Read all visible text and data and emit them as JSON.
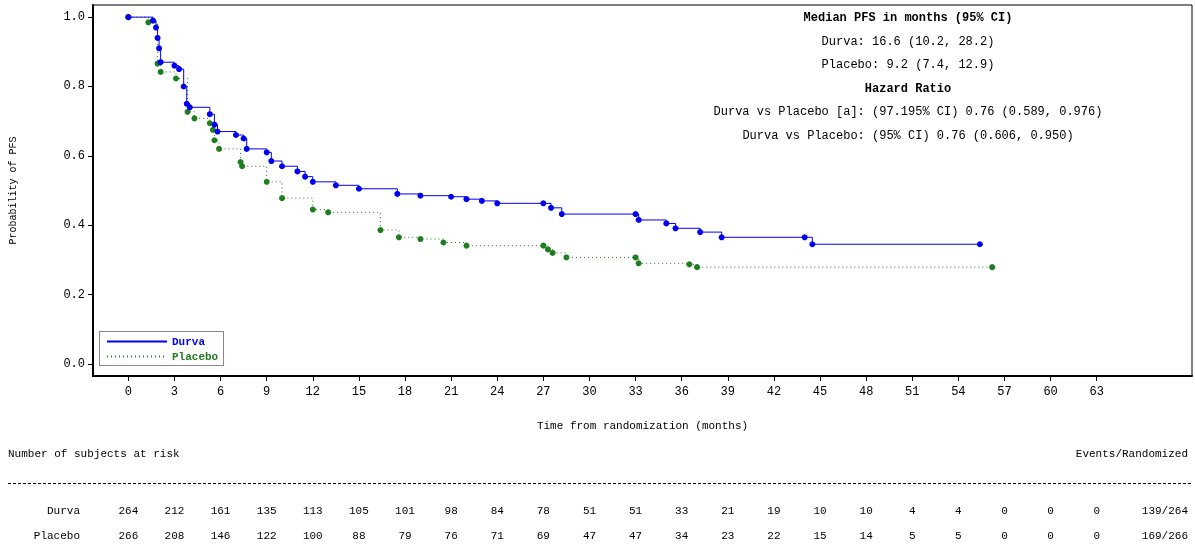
{
  "chart_data": {
    "type": "step",
    "xlabel": "Time from randomization (months)",
    "ylabel": "Probability of PFS",
    "xlim": [
      -2.3,
      69.2
    ],
    "xticks": [
      0,
      3,
      6,
      9,
      12,
      15,
      18,
      21,
      24,
      27,
      30,
      33,
      36,
      39,
      42,
      45,
      48,
      51,
      54,
      57,
      60,
      63
    ],
    "ylim": [
      -0.035,
      1.035
    ],
    "yticks": [
      {
        "value": 0,
        "label": "0.0"
      },
      0.2,
      0.4,
      0.6,
      0.8,
      {
        "value": 1,
        "label": "1.0"
      }
    ],
    "grid": false,
    "legend": "bottom left",
    "marker": "circle",
    "series": [
      {
        "name": "Durva",
        "color": "#0000ee",
        "line_style": "solid",
        "x": [
          0,
          1.6,
          1.8,
          1.9,
          2.0,
          2.1,
          3.0,
          3.3,
          3.6,
          3.8,
          4.0,
          5.3,
          5.6,
          5.8,
          7.0,
          7.5,
          7.7,
          9.0,
          9.3,
          10.0,
          11.0,
          11.5,
          12.0,
          13.5,
          15.0,
          17.5,
          19.0,
          21.0,
          22.0,
          23.0,
          24.0,
          27.0,
          27.5,
          28.2,
          33.0,
          33.2,
          35.0,
          35.6,
          37.2,
          38.6,
          44.0,
          44.5,
          55.4
        ],
        "values": [
          1.0,
          0.99,
          0.97,
          0.94,
          0.91,
          0.87,
          0.86,
          0.85,
          0.8,
          0.75,
          0.74,
          0.72,
          0.69,
          0.67,
          0.66,
          0.65,
          0.62,
          0.61,
          0.585,
          0.57,
          0.555,
          0.54,
          0.525,
          0.515,
          0.505,
          0.49,
          0.485,
          0.482,
          0.475,
          0.47,
          0.463,
          0.463,
          0.45,
          0.432,
          0.432,
          0.415,
          0.405,
          0.391,
          0.38,
          0.365,
          0.365,
          0.345,
          0.345
        ]
      },
      {
        "name": "Placebo",
        "color": "#1e7d1e",
        "line_style": "dotted",
        "x": [
          0,
          1.3,
          1.9,
          2.1,
          3.1,
          3.85,
          4.3,
          5.3,
          5.5,
          5.6,
          5.9,
          7.3,
          7.4,
          9.0,
          10.0,
          12.0,
          13.0,
          16.4,
          17.6,
          19.0,
          20.5,
          22.0,
          27.0,
          27.3,
          27.6,
          28.5,
          33.0,
          33.2,
          36.5,
          37.0,
          56.2
        ],
        "values": [
          1.0,
          0.985,
          0.866,
          0.842,
          0.823,
          0.727,
          0.708,
          0.694,
          0.675,
          0.645,
          0.62,
          0.582,
          0.57,
          0.525,
          0.478,
          0.445,
          0.437,
          0.386,
          0.365,
          0.36,
          0.35,
          0.341,
          0.341,
          0.33,
          0.32,
          0.307,
          0.307,
          0.29,
          0.287,
          0.279,
          0.279
        ]
      }
    ],
    "annotations": [
      "Median PFS in months (95% CI)",
      "Durva: 16.6 (10.2, 28.2)",
      "Placebo: 9.2 (7.4, 12.9)",
      "Hazard Ratio",
      "Durva vs Placebo [a]: (97.195% CI) 0.76 (0.589, 0.976)",
      "Durva vs Placebo: (95% CI) 0.76 (0.606, 0.950)",
      "Number of subjects at risk",
      "Events/Randomized",
      "Durva 264 212 161 135 113 105 101 98 84 78 51 51 33 21 19 10 10 4 4 0 0 0 139/264",
      "Placebo 266 208 146 122 100 88 79 76 71 69 47 47 34 23 22 15 14 5 5 0 0 0 169/266"
    ]
  }
}
